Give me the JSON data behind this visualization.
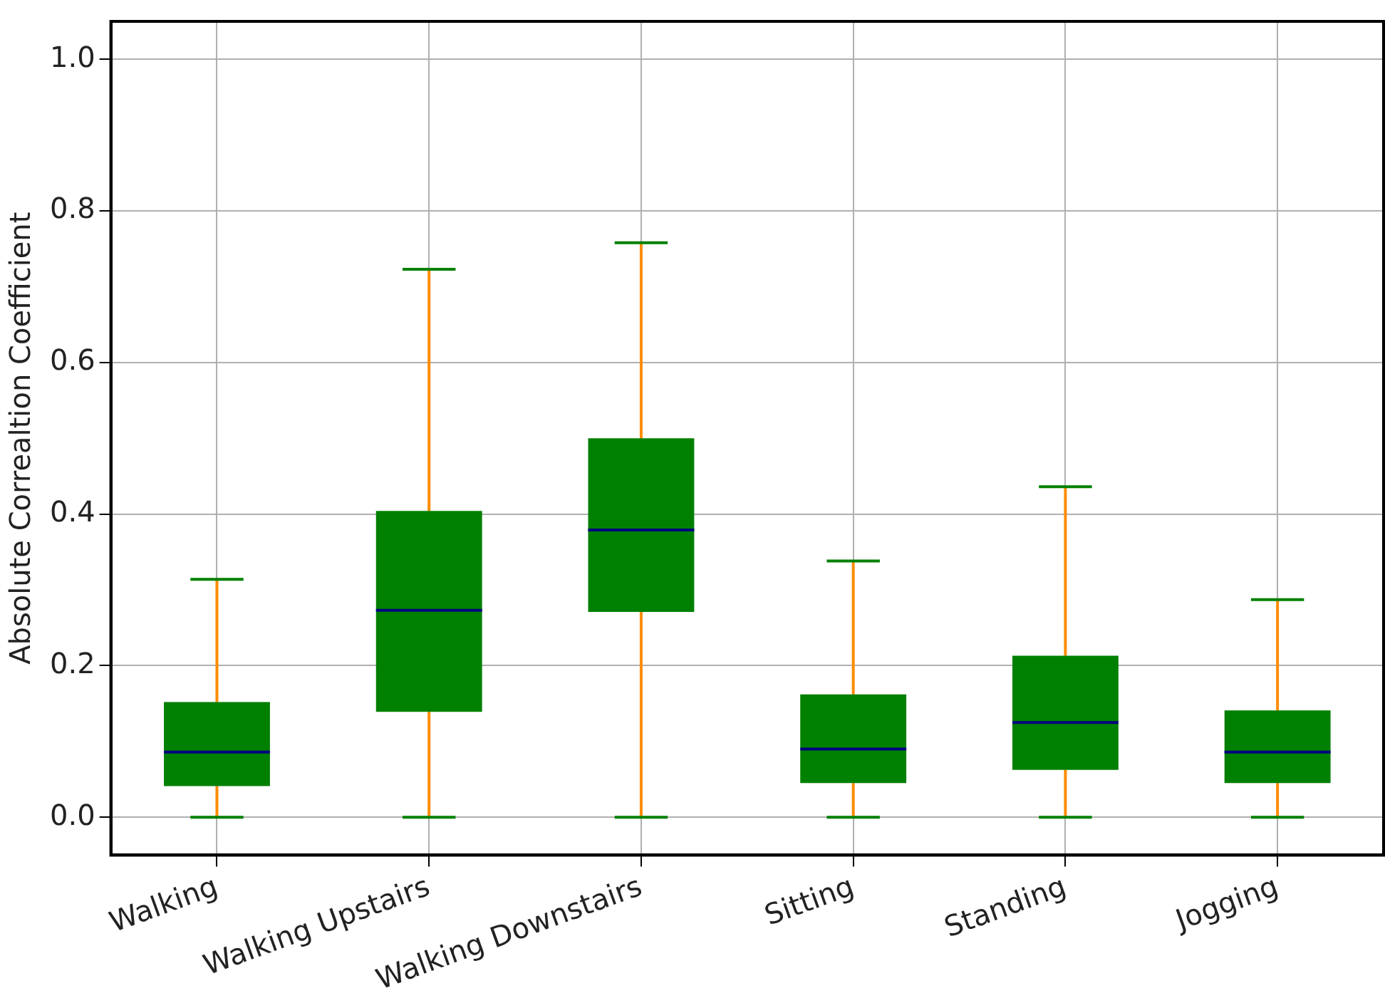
{
  "chart_data": {
    "type": "box",
    "ylabel": "Absolute Correaltion Coefficient",
    "categories": [
      "Walking",
      "Walking Upstairs",
      "Walking Downstairs",
      "Sitting",
      "Standing",
      "Jogging"
    ],
    "color": "#008000",
    "boxes": [
      {
        "low": 0,
        "q1": 0.041,
        "median": 0.086,
        "q3": 0.152,
        "high": 0.314
      },
      {
        "low": 0,
        "q1": 0.139,
        "median": 0.273,
        "q3": 0.404,
        "high": 0.723
      },
      {
        "low": 0,
        "q1": 0.271,
        "median": 0.379,
        "q3": 0.5,
        "high": 0.758
      },
      {
        "low": 0,
        "q1": 0.045,
        "median": 0.09,
        "q3": 0.162,
        "high": 0.338
      },
      {
        "low": 0,
        "q1": 0.0625,
        "median": 0.125,
        "q3": 0.213,
        "high": 0.436
      },
      {
        "low": 0,
        "q1": 0.045,
        "median": 0.086,
        "q3": 0.141,
        "high": 0.287
      }
    ],
    "ylim": [
      -0.05,
      1.05
    ],
    "yticks": [
      {
        "value": 0,
        "label": "0.0"
      },
      0.2,
      0.4,
      0.6,
      0.8,
      {
        "value": 1,
        "label": "1.0"
      }
    ],
    "grid": true
  }
}
